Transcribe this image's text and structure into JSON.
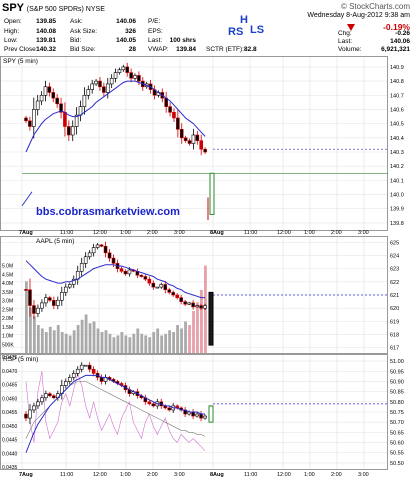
{
  "header": {
    "symbol": "SPY",
    "name": "(S&P 500 SPDRs) NYSE",
    "brand": "© StockCharts.com",
    "datetime": "Wednesday  8-Aug-2012  9:38 am",
    "change_pct": "-0.19%",
    "quote_labels": {
      "open": "Open:",
      "high": "High:",
      "low": "Low:",
      "prev_close": "Prev Close:",
      "ask": "Ask:",
      "ask_size": "Ask Size:",
      "bid": "Bid:",
      "bid_size": "Bid Size:",
      "pe": "P/E:",
      "eps": "EPS:",
      "last": "Last:",
      "vwap": "VWAP:",
      "sctr": "SCTR (ETF):",
      "chg": "Chg:",
      "last2": "Last:",
      "volume": "Volume:"
    },
    "quote_values": {
      "open": "139.85",
      "high": "140.08",
      "low": "139.81",
      "prev_close": "140.32",
      "ask": "140.06",
      "ask_size": "326",
      "bid": "140.05",
      "bid_size": "28",
      "last": "100 shrs",
      "vwap": "139.84",
      "sctr": "82.8",
      "chg": "-0.26",
      "last2": "140.06",
      "volume": "6,921,321"
    },
    "annotations": {
      "h": "H",
      "rs": "RS",
      "ls": "LS"
    }
  },
  "watermark": "bbs.cobrasmarketview.com",
  "colors": {
    "up": "#000000",
    "down": "#cc0000",
    "ma": "#2a2acc",
    "vol": "#aaaaaa",
    "vol_down": "#e8a0a8",
    "ratio_a": "#d070d0",
    "ratio_b": "#7a7a7a"
  },
  "chart_data": [
    {
      "type": "candlestick",
      "title": "SPY (5 min)",
      "x_ticks": [
        "7Aug",
        "11:00",
        "12:00",
        "1:00",
        "2:00",
        "3:00",
        "8Aug",
        "11:00",
        "12:00",
        "1:00",
        "2:00",
        "3:00"
      ],
      "y_ticks": [
        140.9,
        140.8,
        140.7,
        140.6,
        140.5,
        140.4,
        140.3,
        140.2,
        140.1,
        140.0,
        139.9,
        139.8
      ],
      "ylim": [
        139.75,
        140.97
      ],
      "close": [
        140.52,
        140.48,
        140.6,
        140.66,
        140.7,
        140.76,
        140.72,
        140.68,
        140.64,
        140.58,
        140.48,
        140.42,
        140.48,
        140.56,
        140.62,
        140.7,
        140.74,
        140.78,
        140.8,
        140.76,
        140.72,
        140.78,
        140.82,
        140.86,
        140.88,
        140.9,
        140.86,
        140.82,
        140.84,
        140.8,
        140.76,
        140.78,
        140.74,
        140.7,
        140.72,
        140.68,
        140.62,
        140.58,
        140.54,
        140.46,
        140.4,
        140.38,
        140.36,
        140.42,
        140.38,
        140.32,
        140.3
      ],
      "ma": [
        140.3,
        140.36,
        140.42,
        140.46,
        140.5,
        140.53,
        140.55,
        140.57,
        140.58,
        140.59,
        140.58,
        140.56,
        140.55,
        140.55,
        140.56,
        140.58,
        140.6,
        140.62,
        140.65,
        140.67,
        140.69,
        140.71,
        140.73,
        140.75,
        140.77,
        140.79,
        140.8,
        140.8,
        140.8,
        140.79,
        140.78,
        140.77,
        140.76,
        140.74,
        140.72,
        140.7,
        140.68,
        140.66,
        140.63,
        140.6,
        140.57,
        140.54,
        140.52,
        140.5,
        140.47,
        140.44,
        140.41
      ],
      "ref_line": 140.32,
      "session2_close": [
        139.84,
        140.06
      ]
    },
    {
      "type": "candlestick",
      "title": "AAPL (5 min)",
      "y_ticks": [
        625,
        624,
        623,
        622,
        621,
        620,
        619,
        618,
        617
      ],
      "volume_ticks": [
        "5.0M",
        "4.5M",
        "4.0M",
        "3.5M",
        "3.0M",
        "2.5M",
        "2.0M",
        "1.5M",
        "1.0M",
        "500K"
      ],
      "ylim": [
        616.6,
        625.4
      ],
      "close": [
        621.4,
        620.2,
        619.6,
        620.0,
        620.4,
        620.8,
        620.6,
        620.2,
        620.6,
        621.2,
        621.6,
        621.8,
        622.2,
        622.8,
        623.4,
        623.9,
        624.2,
        624.6,
        624.8,
        624.7,
        624.2,
        623.8,
        623.4,
        623.0,
        622.8,
        622.6,
        622.9,
        622.8,
        622.5,
        622.4,
        622.2,
        621.9,
        621.6,
        621.6,
        621.8,
        621.4,
        621.2,
        621.0,
        620.8,
        620.5,
        620.3,
        620.4,
        620.1,
        620.2,
        620.0,
        620.2
      ],
      "ma": [
        623.6,
        623.3,
        623.0,
        622.7,
        622.4,
        622.2,
        622.1,
        622.0,
        621.9,
        621.9,
        622.0,
        622.0,
        622.1,
        622.2,
        622.4,
        622.6,
        622.8,
        623.0,
        623.1,
        623.2,
        623.3,
        623.3,
        623.3,
        623.2,
        623.2,
        623.1,
        623.0,
        622.9,
        622.8,
        622.7,
        622.6,
        622.5,
        622.4,
        622.2,
        622.1,
        622.0,
        621.8,
        621.7,
        621.5,
        621.4,
        621.2,
        621.1,
        621.0,
        620.9,
        620.8,
        620.8
      ],
      "ref_line": 621.0,
      "volume": [
        4.1,
        2.6,
        2.1,
        1.6,
        1.4,
        1.2,
        1.5,
        1.3,
        1.6,
        1.2,
        1.1,
        1.0,
        1.3,
        1.6,
        1.9,
        2.2,
        1.7,
        1.8,
        1.4,
        1.2,
        1.3,
        1.1,
        0.9,
        1.0,
        1.2,
        1.0,
        0.9,
        1.1,
        1.4,
        1.1,
        1.0,
        0.9,
        1.2,
        1.4,
        1.0,
        1.1,
        1.3,
        1.2,
        1.6,
        1.4,
        1.8,
        1.6,
        2.4,
        2.9,
        3.6,
        5.0
      ]
    },
    {
      "type": "line",
      "title": "RSP (5 min)",
      "y_ticks_left": [
        "0.0475",
        "0.0470",
        "0.0465",
        "0.0460",
        "0.0455",
        "0.0450",
        "0.0445",
        "0.0440",
        "0.0435"
      ],
      "y_ticks_right": [
        51.0,
        50.95,
        50.9,
        50.85,
        50.8,
        50.75,
        50.7,
        50.65,
        50.6,
        50.55,
        50.5
      ],
      "ylim": [
        50.47,
        51.03
      ],
      "close": [
        50.72,
        50.76,
        50.78,
        50.8,
        50.82,
        50.84,
        50.83,
        50.82,
        50.84,
        50.88,
        50.9,
        50.92,
        50.94,
        50.96,
        50.98,
        50.98,
        50.96,
        50.94,
        50.92,
        50.9,
        50.92,
        50.91,
        50.9,
        50.89,
        50.88,
        50.86,
        50.84,
        50.85,
        50.83,
        50.82,
        50.8,
        50.79,
        50.78,
        50.8,
        50.78,
        50.77,
        50.76,
        50.78,
        50.77,
        50.76,
        50.74,
        50.75,
        50.73,
        50.74,
        50.72,
        50.73
      ],
      "ma": [
        50.55,
        50.6,
        50.65,
        50.69,
        50.72,
        50.75,
        50.78,
        50.8,
        50.82,
        50.84,
        50.86,
        50.88,
        50.9,
        50.91,
        50.92,
        50.93,
        50.93,
        50.93,
        50.93,
        50.92,
        50.92,
        50.91,
        50.9,
        50.89,
        50.88,
        50.87,
        50.86,
        50.85,
        50.84,
        50.83,
        50.82,
        50.81,
        50.8,
        50.79,
        50.79,
        50.78,
        50.78,
        50.77,
        50.77,
        50.76,
        50.76,
        50.75,
        50.75,
        50.75,
        50.74,
        50.74
      ],
      "ratio_a": [
        50.9,
        50.7,
        50.6,
        50.85,
        50.95,
        50.7,
        50.62,
        50.66,
        50.7,
        50.8,
        50.84,
        50.78,
        50.86,
        50.94,
        50.88,
        50.78,
        50.72,
        50.8,
        50.72,
        50.66,
        50.7,
        50.74,
        50.68,
        50.64,
        50.72,
        50.76,
        50.8,
        50.7,
        50.66,
        50.62,
        50.7,
        50.74,
        50.68,
        50.64,
        50.68,
        50.72,
        50.66,
        50.62,
        50.6,
        50.64,
        50.62,
        50.6,
        50.62,
        50.6,
        50.58,
        50.56
      ],
      "ratio_b": [
        50.62,
        50.66,
        50.7,
        50.72,
        50.74,
        50.76,
        50.78,
        50.8,
        50.82,
        50.84,
        50.86,
        50.88,
        50.89,
        50.9,
        50.9,
        50.9,
        50.89,
        50.88,
        50.87,
        50.86,
        50.85,
        50.84,
        50.83,
        50.82,
        50.81,
        50.8,
        50.79,
        50.78,
        50.77,
        50.76,
        50.75,
        50.74,
        50.73,
        50.72,
        50.71,
        50.7,
        50.69,
        50.68,
        50.67,
        50.66,
        50.66,
        50.65,
        50.65,
        50.64,
        50.64,
        50.63
      ],
      "ref_line": 50.79
    }
  ]
}
